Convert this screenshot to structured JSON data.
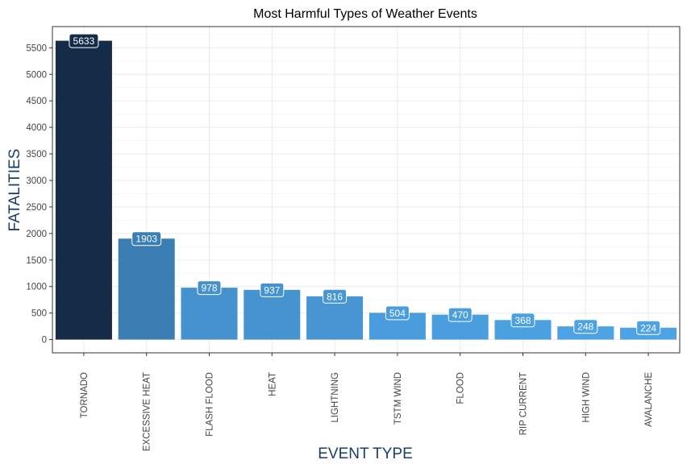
{
  "chart_data": {
    "type": "bar",
    "title": "Most Harmful Types of Weather Events",
    "xlabel": "EVENT TYPE",
    "ylabel": "FATALITIES",
    "categories": [
      "TORNADO",
      "EXCESSIVE HEAT",
      "FLASH FLOOD",
      "HEAT",
      "LIGHTNING",
      "TSTM WIND",
      "FLOOD",
      "RIP CURRENT",
      "HIGH WIND",
      "AVALANCHE"
    ],
    "values": [
      5633,
      1903,
      978,
      937,
      816,
      504,
      470,
      368,
      248,
      224
    ],
    "data_labels": [
      "5633",
      "1903",
      "978",
      "937",
      "816",
      "504",
      "470",
      "368",
      "248",
      "224"
    ],
    "yticks": [
      "0",
      "500",
      "1000",
      "1500",
      "2000",
      "2500",
      "3000",
      "3500",
      "4000",
      "4500",
      "5000",
      "5500"
    ],
    "ylim": [
      -250,
      5900
    ],
    "grid": true,
    "legend": "none",
    "color_scale": {
      "low": "#4da3e4",
      "high": "#142c47"
    }
  }
}
